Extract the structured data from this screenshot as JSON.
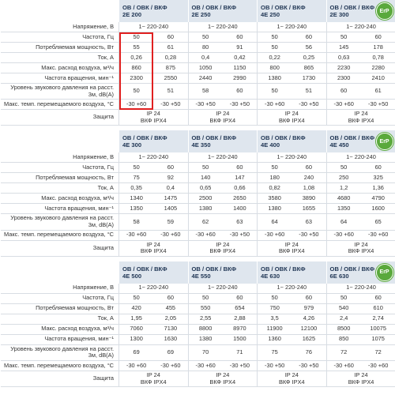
{
  "tables": [
    {
      "models": [
        {
          "line1": "ОВ / ОВК / ВКФ",
          "line2": "2Е 200"
        },
        {
          "line1": "ОВ / ОВК / ВКФ",
          "line2": "2Е 250"
        },
        {
          "line1": "ОВ / ОВК / ВКФ",
          "line2": "4Е 250"
        },
        {
          "line1": "ОВ / ОВК / ВКФ",
          "line2": "2Е 300"
        }
      ],
      "logo": "ErP",
      "rows": [
        {
          "label": "Напряжение, В",
          "cells": [
            "1~ 220-240",
            "1~ 220-240",
            "1~ 220-240",
            "1~ 220-240"
          ]
        },
        {
          "label": "Частота, Гц",
          "cells": [
            "50",
            "60",
            "50",
            "60",
            "50",
            "60",
            "50",
            "60"
          ]
        },
        {
          "label": "Потребляемая мощность, Вт",
          "cells": [
            "55",
            "61",
            "80",
            "91",
            "50",
            "56",
            "145",
            "178"
          ]
        },
        {
          "label": "Ток, А",
          "cells": [
            "0,26",
            "0,28",
            "0,4",
            "0,42",
            "0,22",
            "0,25",
            "0,63",
            "0,78"
          ]
        },
        {
          "label": "Макс. расход воздуха, м³/ч",
          "cells": [
            "860",
            "875",
            "1050",
            "1150",
            "800",
            "865",
            "2230",
            "2280"
          ]
        },
        {
          "label": "Частота вращения, мин⁻¹",
          "cells": [
            "2300",
            "2550",
            "2440",
            "2990",
            "1380",
            "1730",
            "2300",
            "2410"
          ]
        },
        {
          "label": "Уровень звукового давления на расст. 3м, dB(A)",
          "cells": [
            "50",
            "51",
            "58",
            "60",
            "50",
            "51",
            "60",
            "61"
          ]
        },
        {
          "label": "Макс. темп. перемещаемого воздуха, °С",
          "cells": [
            "-30 +60",
            "-30 +50",
            "-30 +50",
            "-30 +50",
            "-30 +60",
            "-30 +50",
            "-30 +60",
            "-30 +50"
          ]
        },
        {
          "label": "Защита",
          "cells": [
            [
              "IP 24",
              "ВКФ IPX4"
            ],
            [
              "IP 24",
              "ВКФ IPX4"
            ],
            [
              "IP 24",
              "ВКФ IPX4"
            ],
            [
              "IP 24",
              "ВКФ IPX4"
            ]
          ]
        }
      ]
    },
    {
      "models": [
        {
          "line1": "ОВ / ОВК / ВКФ",
          "line2": "4Е 300"
        },
        {
          "line1": "ОВ / ОВК / ВКФ",
          "line2": "4Е 350"
        },
        {
          "line1": "ОВ / ОВК / ВКФ",
          "line2": "4Е 400"
        },
        {
          "line1": "ОВ / ОВК / ВКФ",
          "line2": "4Е 450"
        }
      ],
      "logo": "ErP",
      "rows": [
        {
          "label": "Напряжение, В",
          "cells": [
            "1~ 220-240",
            "1~ 220-240",
            "1~ 220-240",
            "1~ 220-240"
          ]
        },
        {
          "label": "Частота, Гц",
          "cells": [
            "50",
            "60",
            "50",
            "60",
            "50",
            "60",
            "50",
            "60"
          ]
        },
        {
          "label": "Потребляемая мощность, Вт",
          "cells": [
            "75",
            "92",
            "140",
            "147",
            "180",
            "240",
            "250",
            "325"
          ]
        },
        {
          "label": "Ток, А",
          "cells": [
            "0,35",
            "0,4",
            "0,65",
            "0,66",
            "0,82",
            "1,08",
            "1,2",
            "1,36"
          ]
        },
        {
          "label": "Макс. расход воздуха, м³/ч",
          "cells": [
            "1340",
            "1475",
            "2500",
            "2650",
            "3580",
            "3890",
            "4680",
            "4790"
          ]
        },
        {
          "label": "Частота вращения, мин⁻¹",
          "cells": [
            "1350",
            "1405",
            "1380",
            "1400",
            "1380",
            "1655",
            "1350",
            "1600"
          ]
        },
        {
          "label": "Уровень звукового давления на расст. 3м, dB(A)",
          "cells": [
            "58",
            "59",
            "62",
            "63",
            "64",
            "63",
            "64",
            "65"
          ]
        },
        {
          "label": "Макс. темп. перемещаемого воздуха, °С",
          "cells": [
            "-30 +60",
            "-30 +60",
            "-30 +60",
            "-30 +50",
            "-30 +60",
            "-30 +50",
            "-30 +60",
            "-30 +60"
          ]
        },
        {
          "label": "Защита",
          "cells": [
            [
              "IP 24",
              "ВКФ IPX4"
            ],
            [
              "IP 24",
              "ВКФ IPX4"
            ],
            [
              "IP 24",
              "ВКФ IPX4"
            ],
            [
              "IP 24",
              "ВКФ IPX4"
            ]
          ]
        }
      ]
    },
    {
      "models": [
        {
          "line1": "ОВ / ОВК / ВКФ",
          "line2": "4Е 500"
        },
        {
          "line1": "ОВ / ОВК / ВКФ",
          "line2": "4Е 550"
        },
        {
          "line1": "ОВ / ОВК / ВКФ",
          "line2": "4Е 630"
        },
        {
          "line1": "ОВ / ОВК / ВКФ",
          "line2": "6Е 630"
        }
      ],
      "logo": "ErP",
      "rows": [
        {
          "label": "Напряжение, В",
          "cells": [
            "1~ 220-240",
            "1~ 220-240",
            "1~ 220-240",
            "1~ 220-240"
          ]
        },
        {
          "label": "Частота, Гц",
          "cells": [
            "50",
            "60",
            "50",
            "60",
            "50",
            "60",
            "50",
            "60"
          ]
        },
        {
          "label": "Потребляемая мощность, Вт",
          "cells": [
            "420",
            "455",
            "550",
            "654",
            "750",
            "979",
            "540",
            "610"
          ]
        },
        {
          "label": "Ток, А",
          "cells": [
            "1,95",
            "2,05",
            "2,55",
            "2,88",
            "3,5",
            "4,26",
            "2,4",
            "2,74"
          ]
        },
        {
          "label": "Макс. расход воздуха, м³/ч",
          "cells": [
            "7060",
            "7130",
            "8800",
            "8970",
            "11900",
            "12100",
            "8500",
            "10075"
          ]
        },
        {
          "label": "Частота вращения, мин⁻¹",
          "cells": [
            "1300",
            "1630",
            "1380",
            "1500",
            "1360",
            "1625",
            "850",
            "1075"
          ]
        },
        {
          "label": "Уровень звукового давления на расст. 3м, dB(A)",
          "cells": [
            "69",
            "69",
            "70",
            "71",
            "75",
            "76",
            "72",
            "72"
          ]
        },
        {
          "label": "Макс. темп. перемещаемого воздуха, °С",
          "cells": [
            "-30 +60",
            "-30 +60",
            "-30 +60",
            "-30 +50",
            "-30 +50",
            "-30 +50",
            "-30 +60",
            "-30 +60"
          ]
        },
        {
          "label": "Защита",
          "cells": [
            [
              "IP 24",
              "ВКФ IPX4"
            ],
            [
              "IP 24",
              "ВКФ IPX4"
            ],
            [
              "IP 24",
              "ВКФ IPX4"
            ],
            [
              "IP 24",
              "ВКФ IPX4"
            ]
          ]
        }
      ]
    }
  ]
}
